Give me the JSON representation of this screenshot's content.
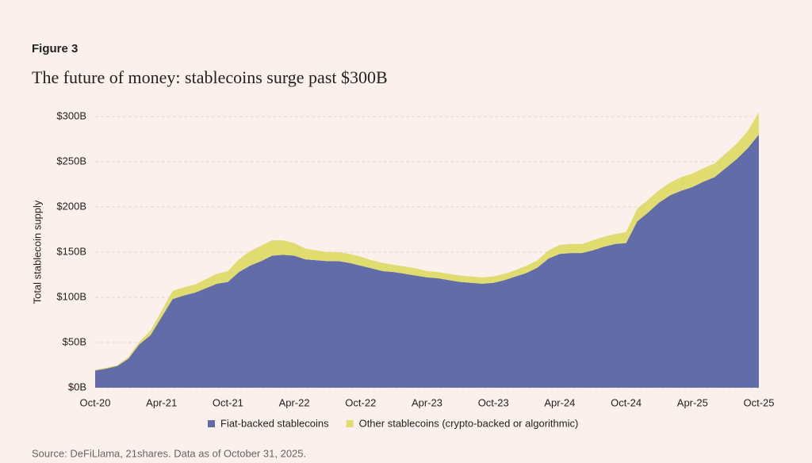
{
  "figure_label": "Figure 3",
  "chart_data": {
    "type": "stacked-area",
    "title": "The future of money: stablecoins surge past $300B",
    "ylabel": "Total stablecoin supply",
    "source": "Source: DeFiLlama, 21shares. Data as of October 31, 2025.",
    "categories": [
      "Oct-20",
      null,
      null,
      null,
      null,
      null,
      "Apr-21",
      null,
      null,
      null,
      null,
      null,
      "Oct-21",
      null,
      null,
      null,
      null,
      null,
      "Apr-22",
      null,
      null,
      null,
      null,
      null,
      "Oct-22",
      null,
      null,
      null,
      null,
      null,
      "Apr-23",
      null,
      null,
      null,
      null,
      null,
      "Oct-23",
      null,
      null,
      null,
      null,
      null,
      "Apr-24",
      null,
      null,
      null,
      null,
      null,
      "Oct-24",
      null,
      null,
      null,
      null,
      null,
      "Apr-25",
      null,
      null,
      null,
      null,
      null,
      "Oct-25"
    ],
    "series": [
      {
        "name": "Fiat-backed stablecoins",
        "color": "#626ca9",
        "values": [
          19,
          21,
          24,
          32,
          48,
          58,
          78,
          98,
          102,
          105,
          110,
          115,
          117,
          128,
          135,
          140,
          146,
          147,
          146,
          142,
          141,
          140,
          140,
          138,
          135,
          132,
          129,
          128,
          126,
          124,
          122,
          121,
          119,
          117,
          116,
          115,
          116,
          119,
          123,
          127,
          133,
          143,
          148,
          149,
          149,
          152,
          156,
          159,
          160,
          184,
          194,
          205,
          213,
          218,
          222,
          228,
          233,
          243,
          253,
          265,
          280
        ]
      },
      {
        "name": "Other stablecoins (crypto-backed or algorithmic)",
        "color": "#e0dc6f",
        "values": [
          1,
          1,
          1,
          2,
          3,
          5,
          7,
          9,
          9,
          9,
          10,
          11,
          12,
          14,
          16,
          17,
          17,
          16,
          14,
          12,
          11,
          10,
          10,
          10,
          10,
          9,
          9,
          8,
          8,
          8,
          7,
          7,
          7,
          7,
          7,
          7,
          7,
          7,
          7,
          8,
          8,
          9,
          10,
          10,
          10,
          11,
          11,
          11,
          12,
          14,
          14,
          14,
          14,
          15,
          15,
          15,
          15,
          16,
          17,
          19,
          25
        ]
      }
    ],
    "ylim": [
      0,
      300
    ],
    "yticks": [
      {
        "value": 0,
        "label": "$0B"
      },
      {
        "value": 50,
        "label": "$50B"
      },
      {
        "value": 100,
        "label": "$100B"
      },
      {
        "value": 150,
        "label": "$150B"
      },
      {
        "value": 200,
        "label": "$200B"
      },
      {
        "value": 250,
        "label": "$250B"
      },
      {
        "value": 300,
        "label": "$300B"
      }
    ],
    "grid": true
  }
}
